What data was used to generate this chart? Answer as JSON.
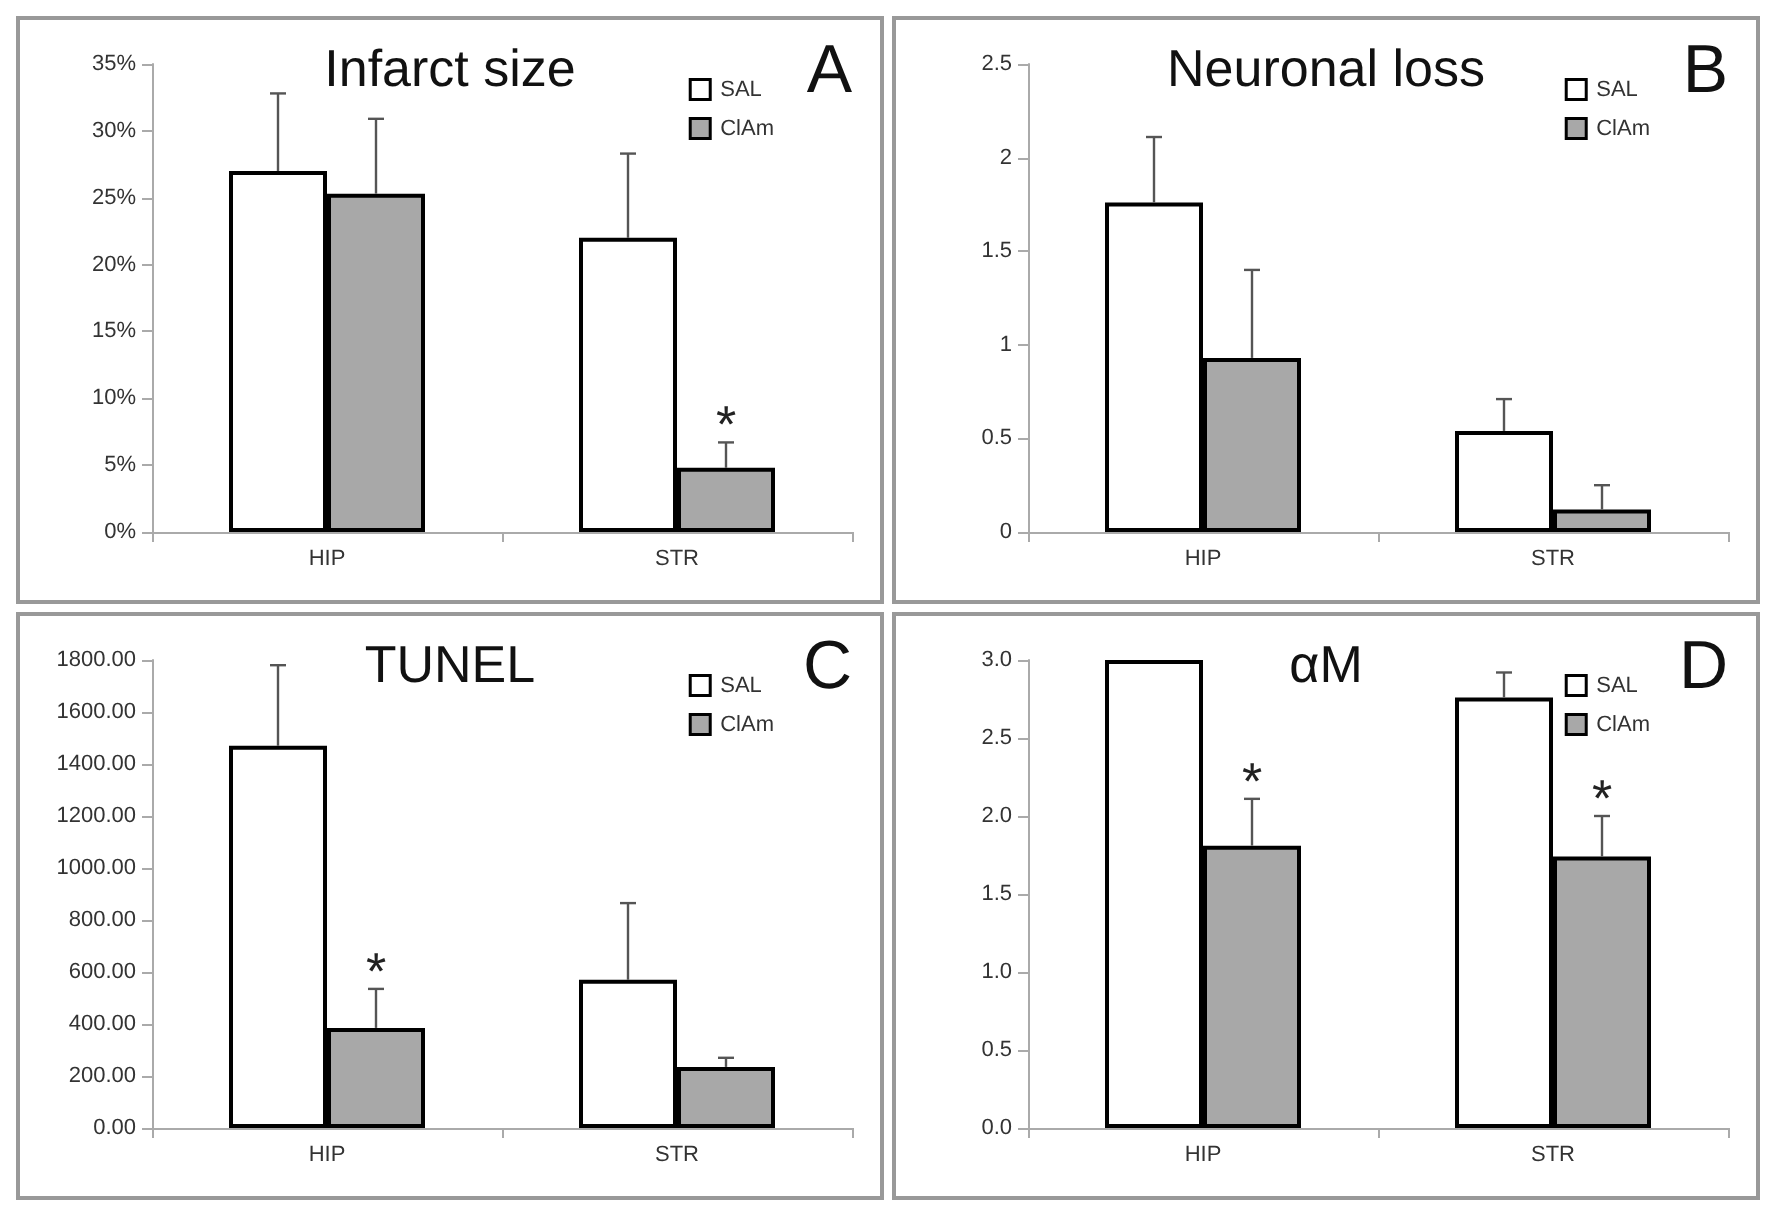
{
  "chart_data": [
    {
      "type": "bar",
      "title": "Infarct size",
      "annotations": [
        "A"
      ],
      "categories": [
        "HIP",
        "STR"
      ],
      "legend": "top right",
      "grid": false,
      "ylim": [
        0,
        35
      ],
      "yticks": [
        {
          "value": 0,
          "label": "0%"
        },
        {
          "value": 5,
          "label": "5%"
        },
        {
          "value": 10,
          "label": "10%"
        },
        {
          "value": 15,
          "label": "15%"
        },
        {
          "value": 20,
          "label": "20%"
        },
        {
          "value": 25,
          "label": "25%"
        },
        {
          "value": 30,
          "label": "30%"
        },
        {
          "value": 35,
          "label": "35%"
        }
      ],
      "series": [
        {
          "name": "SAL",
          "color": "#ffffff",
          "values": [
            27,
            22
          ],
          "errors": [
            [
              27,
              32.8
            ],
            [
              22,
              28.3
            ]
          ]
        },
        {
          "name": "ClAm",
          "color": "#a8a8a8",
          "values": [
            25.3,
            4.8
          ],
          "errors": [
            [
              25.3,
              30.9
            ],
            [
              4.8,
              6.7
            ]
          ],
          "value_labels": [
            null,
            "*"
          ]
        }
      ]
    },
    {
      "type": "bar",
      "title": "Neuronal loss",
      "annotations": [
        "B"
      ],
      "categories": [
        "HIP",
        "STR"
      ],
      "legend": "top right",
      "grid": false,
      "ylim": [
        0,
        2.5
      ],
      "yticks": [
        0,
        0.5,
        1,
        1.5,
        2,
        2.5
      ],
      "series": [
        {
          "name": "SAL",
          "color": "#ffffff",
          "values": [
            1.76,
            0.54
          ],
          "errors": [
            [
              1.76,
              2.11
            ],
            [
              0.54,
              0.71
            ]
          ]
        },
        {
          "name": "ClAm",
          "color": "#a8a8a8",
          "values": [
            0.93,
            0.12
          ],
          "errors": [
            [
              0.93,
              1.4
            ],
            [
              0.12,
              0.25
            ]
          ]
        }
      ]
    },
    {
      "type": "bar",
      "title": "TUNEL",
      "annotations": [
        "C"
      ],
      "categories": [
        "HIP",
        "STR"
      ],
      "legend": "top right",
      "grid": false,
      "ylim": [
        0,
        1800
      ],
      "yticks": [
        {
          "value": 0,
          "label": "0.00"
        },
        {
          "value": 200,
          "label": "200.00"
        },
        {
          "value": 400,
          "label": "400.00"
        },
        {
          "value": 600,
          "label": "600.00"
        },
        {
          "value": 800,
          "label": "800.00"
        },
        {
          "value": 1000,
          "label": "1000.00"
        },
        {
          "value": 1200,
          "label": "1200.00"
        },
        {
          "value": 1400,
          "label": "1400.00"
        },
        {
          "value": 1600,
          "label": "1600.00"
        },
        {
          "value": 1800,
          "label": "1800.00"
        }
      ],
      "series": [
        {
          "name": "SAL",
          "color": "#ffffff",
          "values": [
            1470,
            570
          ],
          "errors": [
            [
              1470,
              1780
            ],
            [
              570,
              865
            ]
          ]
        },
        {
          "name": "ClAm",
          "color": "#a8a8a8",
          "values": [
            385,
            235
          ],
          "errors": [
            [
              385,
              535
            ],
            [
              235,
              270
            ]
          ],
          "value_labels": [
            "*",
            null
          ]
        }
      ]
    },
    {
      "type": "bar",
      "title": "αM",
      "annotations": [
        "D"
      ],
      "categories": [
        "HIP",
        "STR"
      ],
      "legend": "top right",
      "grid": false,
      "ylim": [
        0,
        3
      ],
      "yticks": [
        {
          "value": 0,
          "label": "0.0"
        },
        {
          "value": 0.5,
          "label": "0.5"
        },
        {
          "value": 1,
          "label": "1.0"
        },
        {
          "value": 1.5,
          "label": "1.5"
        },
        {
          "value": 2,
          "label": "2.0"
        },
        {
          "value": 2.5,
          "label": "2.5"
        },
        {
          "value": 3,
          "label": "3.0"
        }
      ],
      "series": [
        {
          "name": "SAL",
          "color": "#ffffff",
          "values": [
            3,
            2.76
          ],
          "errors": [
            null,
            [
              2.76,
              2.92
            ]
          ]
        },
        {
          "name": "ClAm",
          "color": "#a8a8a8",
          "values": [
            1.81,
            1.74
          ],
          "errors": [
            [
              1.81,
              2.11
            ],
            [
              1.74,
              2.0
            ]
          ],
          "value_labels": [
            "*",
            "*"
          ]
        }
      ]
    }
  ]
}
